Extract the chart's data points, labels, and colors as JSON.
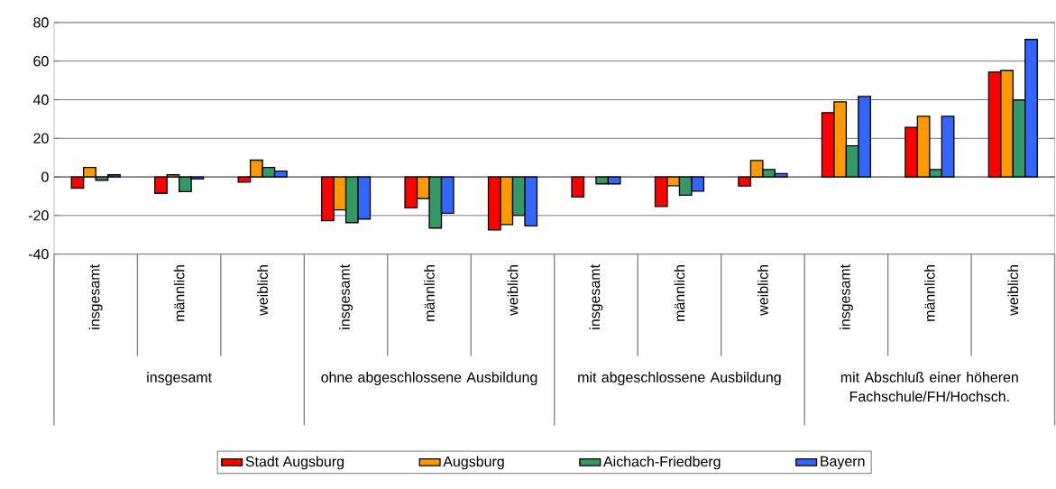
{
  "chart_data": {
    "type": "bar",
    "categories": [
      "insgesamt",
      "männlich",
      "weiblich",
      "insgesamt",
      "männlich",
      "weiblich",
      "insgesamt",
      "männlich",
      "weiblich",
      "insgesamt",
      "männlich",
      "weiblich"
    ],
    "annotations": [
      "insgesamt",
      "ohne abgeschlossene Ausbildung",
      "mit abgeschlossene Ausbildung",
      "mit Abschluß einer höheren Fachschule/FH/Hochsch."
    ],
    "series": [
      {
        "name": "Stadt Augsburg",
        "color": "#ff0000",
        "values": [
          -5.8,
          -8.5,
          -2.7,
          -22.7,
          -16.0,
          -27.5,
          -10.4,
          -15.3,
          -4.7,
          33.3,
          25.7,
          54.3
        ]
      },
      {
        "name": "Augsburg",
        "color": "#ff9900",
        "values": [
          4.9,
          1.1,
          8.7,
          -17.1,
          -11.2,
          -24.7,
          null,
          -4.6,
          8.5,
          38.9,
          31.4,
          55.1
        ]
      },
      {
        "name": "Aichach-Friedberg",
        "color": "#339966",
        "values": [
          -1.7,
          -7.6,
          4.9,
          -23.7,
          -26.5,
          -19.9,
          -3.6,
          -9.5,
          3.8,
          16.1,
          3.8,
          39.8
        ]
      },
      {
        "name": "Bayern",
        "color": "#3366ff",
        "values": [
          1.1,
          -1.1,
          3.0,
          -21.8,
          -18.8,
          -25.4,
          -3.6,
          -7.4,
          1.7,
          41.7,
          31.4,
          71.2
        ]
      }
    ],
    "ylim": [
      -40,
      80
    ],
    "yticks": [
      -40,
      -20,
      0,
      20,
      40,
      60,
      80
    ],
    "grid": "y",
    "legend": "bottom"
  }
}
